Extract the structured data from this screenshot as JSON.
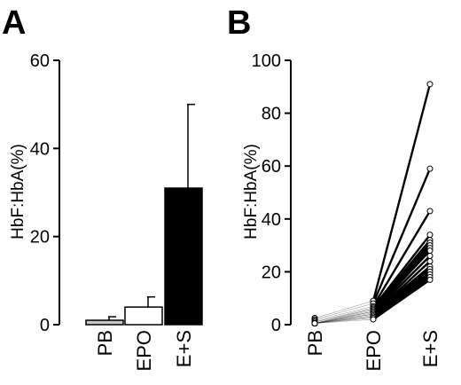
{
  "chart_data": [
    {
      "panel": "A",
      "type": "bar",
      "ylabel": "HbF:HbA(%)",
      "ylim": [
        0,
        60
      ],
      "yticks": [
        0,
        20,
        40,
        60
      ],
      "categories": [
        "PB",
        "EPO",
        "E+S"
      ],
      "values": [
        1,
        4,
        31
      ],
      "errors": [
        0.8,
        2.3,
        19
      ],
      "bar_colors": [
        "#c8c8c8",
        "#ffffff",
        "#000000"
      ],
      "grid": false
    },
    {
      "panel": "B",
      "type": "line",
      "ylabel": "HbF:HbA(%)",
      "ylim": [
        0,
        100
      ],
      "yticks": [
        0,
        20,
        40,
        60,
        80,
        100
      ],
      "categories": [
        "PB",
        "EPO",
        "E+S"
      ],
      "series": [
        {
          "values": [
            2.5,
            9,
            91
          ]
        },
        {
          "values": [
            2,
            8,
            59
          ]
        },
        {
          "values": [
            1.5,
            7,
            43
          ]
        },
        {
          "values": [
            1,
            6.5,
            34
          ]
        },
        {
          "values": [
            1,
            6,
            32
          ]
        },
        {
          "values": [
            0.5,
            6,
            31
          ]
        },
        {
          "values": [
            0.5,
            5.5,
            30
          ]
        },
        {
          "values": [
            0.5,
            5,
            29
          ]
        },
        {
          "values": [
            0.5,
            5,
            28
          ]
        },
        {
          "values": [
            0.5,
            4.5,
            26
          ]
        },
        {
          "values": [
            0.5,
            4,
            24
          ]
        },
        {
          "values": [
            0.5,
            4,
            22
          ]
        },
        {
          "values": [
            0.5,
            3.5,
            21
          ]
        },
        {
          "values": [
            0.5,
            3,
            20
          ]
        },
        {
          "values": [
            0.5,
            3,
            19
          ]
        },
        {
          "values": [
            0.5,
            2.5,
            18
          ]
        },
        {
          "values": [
            0.5,
            2,
            17
          ]
        }
      ],
      "grid": false
    }
  ]
}
